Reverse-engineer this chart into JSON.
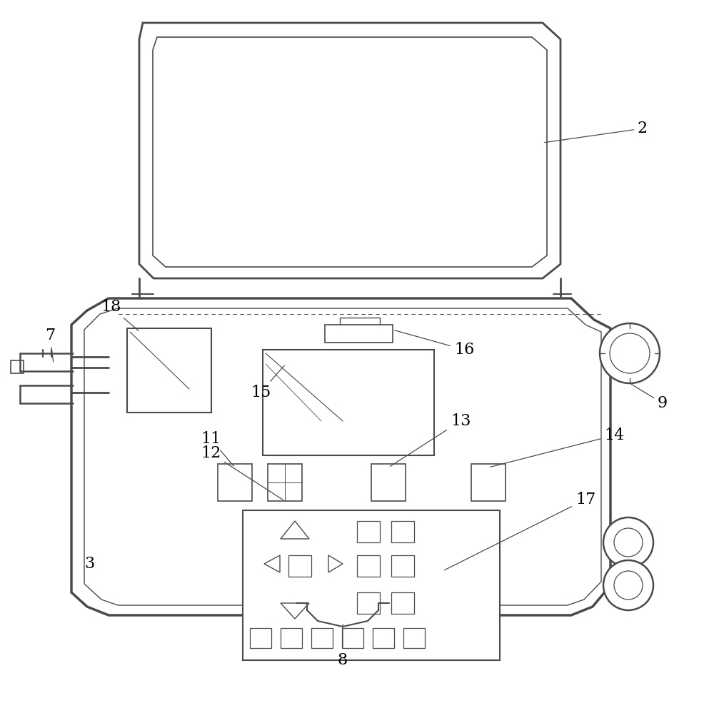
{
  "bg_color": "#ffffff",
  "line_color": "#4a4a4a",
  "label_color": "#000000",
  "fig_width": 10.0,
  "fig_height": 9.92
}
